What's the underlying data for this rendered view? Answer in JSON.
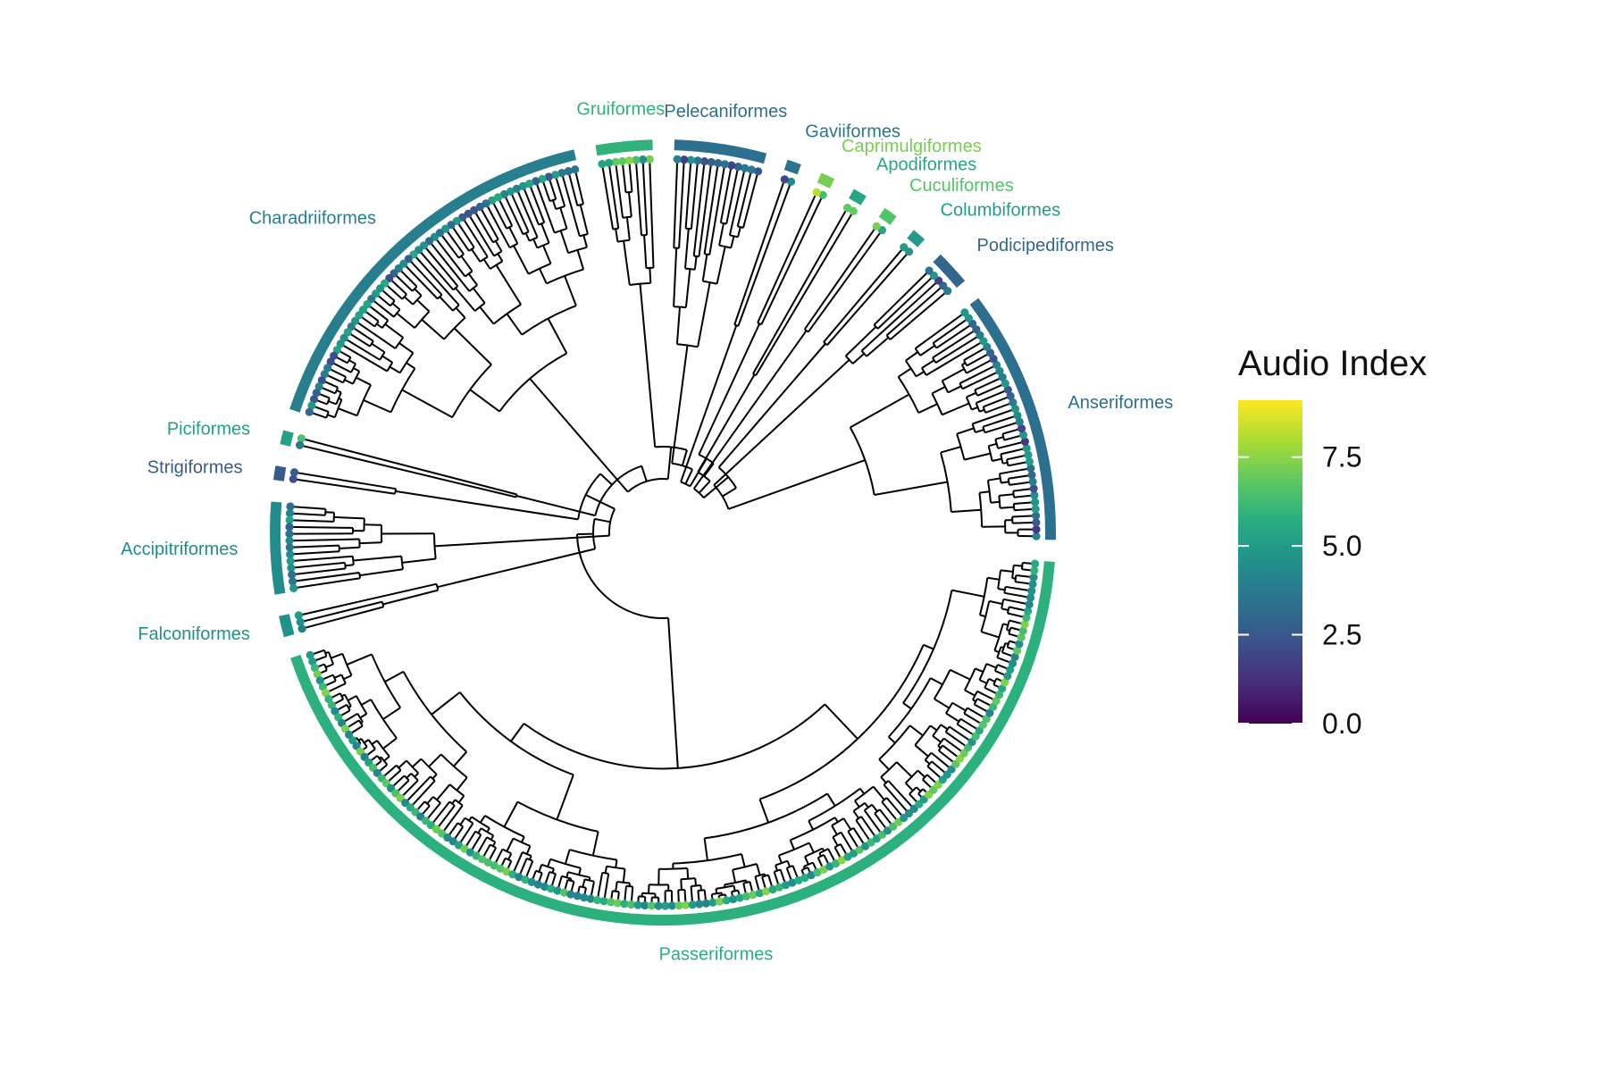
{
  "legend": {
    "title": "Audio Index",
    "min": 0,
    "max": 9.1,
    "ticks": [
      {
        "value": 0.0,
        "label": "0.0"
      },
      {
        "value": 2.5,
        "label": "2.5"
      },
      {
        "value": 5.0,
        "label": "5.0"
      },
      {
        "value": 7.5,
        "label": "7.5"
      }
    ],
    "palette": [
      "#440154",
      "#472D7B",
      "#3B528B",
      "#2C728E",
      "#21908C",
      "#27AD81",
      "#5DC863",
      "#AADC32",
      "#FDE725"
    ]
  },
  "orders": [
    {
      "name": "Anseriformes",
      "index": 3.3,
      "tips": 36
    },
    {
      "name": "Podicipediformes",
      "index": 3.0,
      "tips": 5
    },
    {
      "name": "Columbiformes",
      "index": 5.0,
      "tips": 2
    },
    {
      "name": "Cuculiformes",
      "index": 6.6,
      "tips": 2
    },
    {
      "name": "Apodiformes",
      "index": 5.4,
      "tips": 2
    },
    {
      "name": "Caprimulgiformes",
      "index": 7.2,
      "tips": 2
    },
    {
      "name": "Gaviiformes",
      "index": 3.5,
      "tips": 2
    },
    {
      "name": "Pelecaniformes",
      "index": 3.3,
      "tips": 13
    },
    {
      "name": "Gruiformes",
      "index": 5.9,
      "tips": 8
    },
    {
      "name": "Charadriiformes",
      "index": 3.9,
      "tips": 56
    },
    {
      "name": "Piciformes",
      "index": 5.2,
      "tips": 2
    },
    {
      "name": "Strigiformes",
      "index": 2.6,
      "tips": 2
    },
    {
      "name": "Accipitriformes",
      "index": 4.4,
      "tips": 13
    },
    {
      "name": "Falconiformes",
      "index": 4.6,
      "tips": 3
    },
    {
      "name": "Passeriformes",
      "index": 5.8,
      "tips": 150
    }
  ]
}
